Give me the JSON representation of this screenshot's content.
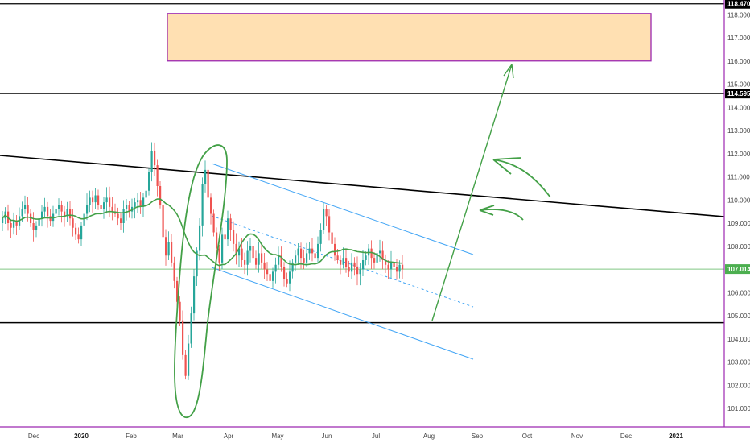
{
  "colors": {
    "background": "#ffffff",
    "axis_line": "#9c27b0",
    "bull_candle": "#26a69a",
    "bear_candle": "#ef5350",
    "moving_average": "#43a047",
    "channel": "#42a5f5",
    "trendline": "#000000",
    "target_zone_fill": "#ffe0b2",
    "target_zone_border": "#9c27b0",
    "annotation": "#43a047",
    "price_line": "#81c784",
    "label_dark": "#000000",
    "label_green": "#4caf50"
  },
  "axes": {
    "y_ticks": [
      "118.000",
      "117.000",
      "116.000",
      "115.000",
      "114.000",
      "113.000",
      "112.000",
      "111.000",
      "110.000",
      "109.000",
      "108.000",
      "107.000",
      "106.000",
      "105.000",
      "104.000",
      "103.000",
      "102.000",
      "101.000"
    ],
    "x_ticks": [
      {
        "label": "Dec",
        "bold": false
      },
      {
        "label": "2020",
        "bold": true
      },
      {
        "label": "Feb",
        "bold": false
      },
      {
        "label": "Mar",
        "bold": false
      },
      {
        "label": "Apr",
        "bold": false
      },
      {
        "label": "May",
        "bold": false
      },
      {
        "label": "Jun",
        "bold": false
      },
      {
        "label": "Jul",
        "bold": false
      },
      {
        "label": "Aug",
        "bold": false
      },
      {
        "label": "Sep",
        "bold": false
      },
      {
        "label": "Oct",
        "bold": false
      },
      {
        "label": "Nov",
        "bold": false
      },
      {
        "label": "Dec",
        "bold": false
      },
      {
        "label": "2021",
        "bold": true
      }
    ]
  },
  "price_labels": {
    "top_level": "118.470",
    "mid_level": "114.595",
    "current": "107.014"
  },
  "chart_data": {
    "type": "candlestick",
    "title": "",
    "ylim": [
      100.5,
      118.9
    ],
    "x_axis_months": [
      "Dec",
      "2020",
      "Feb",
      "Mar",
      "Apr",
      "May",
      "Jun",
      "Jul",
      "Aug",
      "Sep",
      "Oct",
      "Nov",
      "Dec",
      "2021"
    ],
    "horizontal_levels": [
      118.47,
      114.595,
      104.7
    ],
    "current_price": 107.014,
    "target_zone": {
      "low": 116.0,
      "high": 118.05
    },
    "candle_closes_approx": [
      109.2,
      109.5,
      109.0,
      108.8,
      109.1,
      108.9,
      109.3,
      109.6,
      109.8,
      109.4,
      109.0,
      108.7,
      108.9,
      109.2,
      109.5,
      109.7,
      109.3,
      109.1,
      109.4,
      109.6,
      109.8,
      109.5,
      109.3,
      109.6,
      109.2,
      108.8,
      108.5,
      108.3,
      108.9,
      109.4,
      109.8,
      110.1,
      109.9,
      110.2,
      109.8,
      109.6,
      109.9,
      110.1,
      109.7,
      109.5,
      109.4,
      109.2,
      109.0,
      109.6,
      109.8,
      109.5,
      109.7,
      109.9,
      110.0,
      109.7,
      110.1,
      110.4,
      111.2,
      112.1,
      111.5,
      110.6,
      109.8,
      108.4,
      107.6,
      108.2,
      107.3,
      106.5,
      105.6,
      104.8,
      103.3,
      102.4,
      103.8,
      105.1,
      106.7,
      107.8,
      108.9,
      110.7,
      111.3,
      110.1,
      109.4,
      108.6,
      107.9,
      107.3,
      108.5,
      108.3,
      109.2,
      108.7,
      108.1,
      107.6,
      107.9,
      107.4,
      107.2,
      107.8,
      108.0,
      107.5,
      107.2,
      107.7,
      107.3,
      107.0,
      106.8,
      106.5,
      106.9,
      107.2,
      107.6,
      107.1,
      106.6,
      106.4,
      106.9,
      107.3,
      107.6,
      107.9,
      107.5,
      107.3,
      107.7,
      107.9,
      107.7,
      107.5,
      108.1,
      108.7,
      109.6,
      109.3,
      108.6,
      108.1,
      107.6,
      107.4,
      107.2,
      107.5,
      107.1,
      106.9,
      107.3,
      107.1,
      106.8,
      107.0,
      107.4,
      107.6,
      107.9,
      107.5,
      107.3,
      107.7,
      107.8,
      107.4,
      107.2,
      107.0,
      107.3,
      107.1,
      106.9,
      107.2,
      107.0
    ]
  }
}
